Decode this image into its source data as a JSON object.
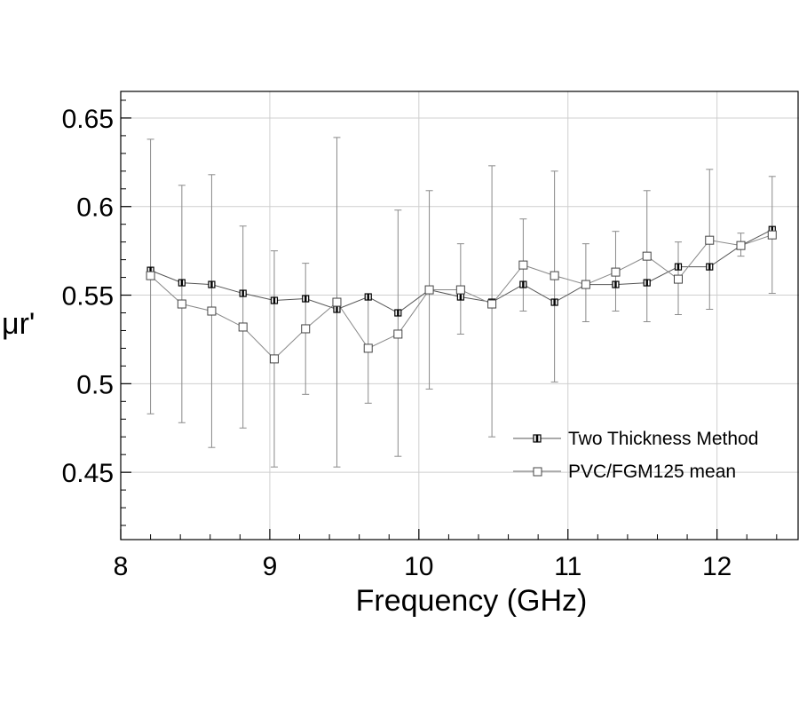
{
  "chart_data": {
    "type": "line",
    "title": "",
    "xlabel": "Frequency (GHz)",
    "ylabel": "μr'",
    "xlim": [
      8,
      12.55
    ],
    "ylim": [
      0.412,
      0.665
    ],
    "xticks": [
      8,
      9,
      10,
      11,
      12
    ],
    "yticks": [
      0.45,
      0.5,
      0.55,
      0.6,
      0.65
    ],
    "xtick_labels": [
      "8",
      "9",
      "10",
      "11",
      "12"
    ],
    "ytick_labels": [
      "0.45",
      "0.5",
      "0.55",
      "0.6",
      "0.65"
    ],
    "grid": true,
    "legend_position": "lower-right",
    "x": [
      8.2,
      8.41,
      8.61,
      8.82,
      9.03,
      9.24,
      9.45,
      9.66,
      9.86,
      10.07,
      10.28,
      10.49,
      10.7,
      10.91,
      11.12,
      11.32,
      11.53,
      11.74,
      11.95,
      12.16,
      12.37
    ],
    "series": [
      {
        "name": "Two Thickness Method",
        "marker": "filled-square",
        "values": [
          0.564,
          0.557,
          0.556,
          0.551,
          0.547,
          0.548,
          0.542,
          0.549,
          0.54,
          0.553,
          0.549,
          0.546,
          0.556,
          0.546,
          0.556,
          0.556,
          0.557,
          0.566,
          0.566,
          0.578,
          0.587
        ]
      },
      {
        "name": "PVC/FGM125 mean",
        "marker": "open-square",
        "values": [
          0.561,
          0.545,
          0.541,
          0.532,
          0.514,
          0.531,
          0.546,
          0.52,
          0.528,
          0.553,
          0.553,
          0.545,
          0.567,
          0.561,
          0.556,
          0.563,
          0.572,
          0.559,
          0.581,
          0.578,
          0.584
        ],
        "error_low": [
          0.483,
          0.478,
          0.464,
          0.475,
          0.453,
          0.494,
          0.453,
          0.489,
          0.459,
          0.497,
          0.528,
          0.47,
          0.541,
          0.501,
          0.535,
          0.541,
          0.535,
          0.539,
          0.542,
          0.572,
          0.551
        ],
        "error_high": [
          0.638,
          0.612,
          0.618,
          0.589,
          0.575,
          0.568,
          0.639,
          0.549,
          0.598,
          0.609,
          0.579,
          0.623,
          0.593,
          0.62,
          0.579,
          0.586,
          0.609,
          0.58,
          0.621,
          0.585,
          0.617
        ]
      }
    ]
  }
}
